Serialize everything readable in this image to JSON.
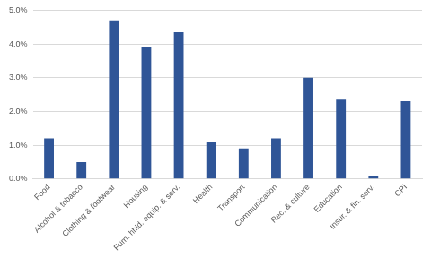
{
  "chart_data": {
    "type": "bar",
    "categories": [
      "Food",
      "Alcohol & tobacco",
      "Clothing & footwear",
      "Housing",
      "Furn. hhld. equip. & serv.",
      "Health",
      "Transport",
      "Communication",
      "Rec. & culture",
      "Education",
      "Insur. & fin. serv.",
      "CPI"
    ],
    "values": [
      1.2,
      0.5,
      4.7,
      3.9,
      4.35,
      1.1,
      0.9,
      1.2,
      3.0,
      2.35,
      0.1,
      2.3
    ],
    "color": "#2f5597",
    "ylim": [
      0,
      5
    ],
    "yticks": [
      {
        "value": 0,
        "label": "0.0%"
      },
      {
        "value": 1,
        "label": "1.0%"
      },
      {
        "value": 2,
        "label": "2.0%"
      },
      {
        "value": 3,
        "label": "3.0%"
      },
      {
        "value": 4,
        "label": "4.0%"
      },
      {
        "value": 5,
        "label": "5.0%"
      }
    ],
    "grid": true
  }
}
